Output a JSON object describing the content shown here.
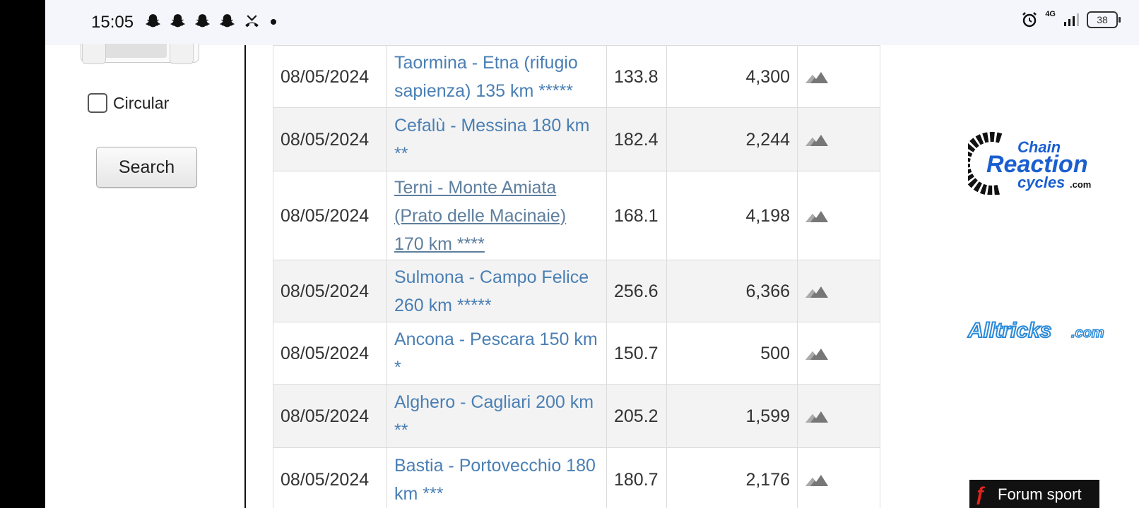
{
  "status_bar": {
    "time": "15:05",
    "network": "4G",
    "battery": "38",
    "icons": [
      "snapchat-icon",
      "snapchat-icon",
      "snapchat-icon",
      "snapchat-icon",
      "missed-call-icon",
      "dot-icon",
      "alarm-icon",
      "signal-icon",
      "battery-icon"
    ]
  },
  "sidebar": {
    "circular_label": "Circular",
    "search_label": "Search"
  },
  "routes": [
    {
      "date": "08/05/2024",
      "name": "Taormina - Etna (rifugio sapienza) 135 km *****",
      "distance": "133.8",
      "elevation": "4,300",
      "visited": false
    },
    {
      "date": "08/05/2024",
      "name": "Cefalù - Messina 180 km **",
      "distance": "182.4",
      "elevation": "2,244",
      "visited": false
    },
    {
      "date": "08/05/2024",
      "name": "Terni - Monte Amiata (Prato delle Macinaie) 170 km ****",
      "distance": "168.1",
      "elevation": "4,198",
      "visited": true
    },
    {
      "date": "08/05/2024",
      "name": "Sulmona - Campo Felice 260 km *****",
      "distance": "256.6",
      "elevation": "6,366",
      "visited": false
    },
    {
      "date": "08/05/2024",
      "name": "Ancona - Pescara 150 km *",
      "distance": "150.7",
      "elevation": "500",
      "visited": false
    },
    {
      "date": "08/05/2024",
      "name": "Alghero - Cagliari 200 km **",
      "distance": "205.2",
      "elevation": "1,599",
      "visited": false
    },
    {
      "date": "08/05/2024",
      "name": "Bastia - Portovecchio 180 km ***",
      "distance": "180.7",
      "elevation": "2,176",
      "visited": false
    }
  ],
  "ads": {
    "chain_reaction": {
      "line1": "Chain",
      "line2": "Reaction",
      "line3": "cycles",
      "suffix": ".com"
    },
    "alltricks": {
      "name": "Alltricks",
      "suffix": ".com"
    },
    "forum_sport": {
      "name": "Forum sport"
    }
  },
  "colors": {
    "link": "#4a7fb4",
    "crc_blue": "#1a5fd0",
    "alltricks_blue": "#2a8ad8"
  }
}
